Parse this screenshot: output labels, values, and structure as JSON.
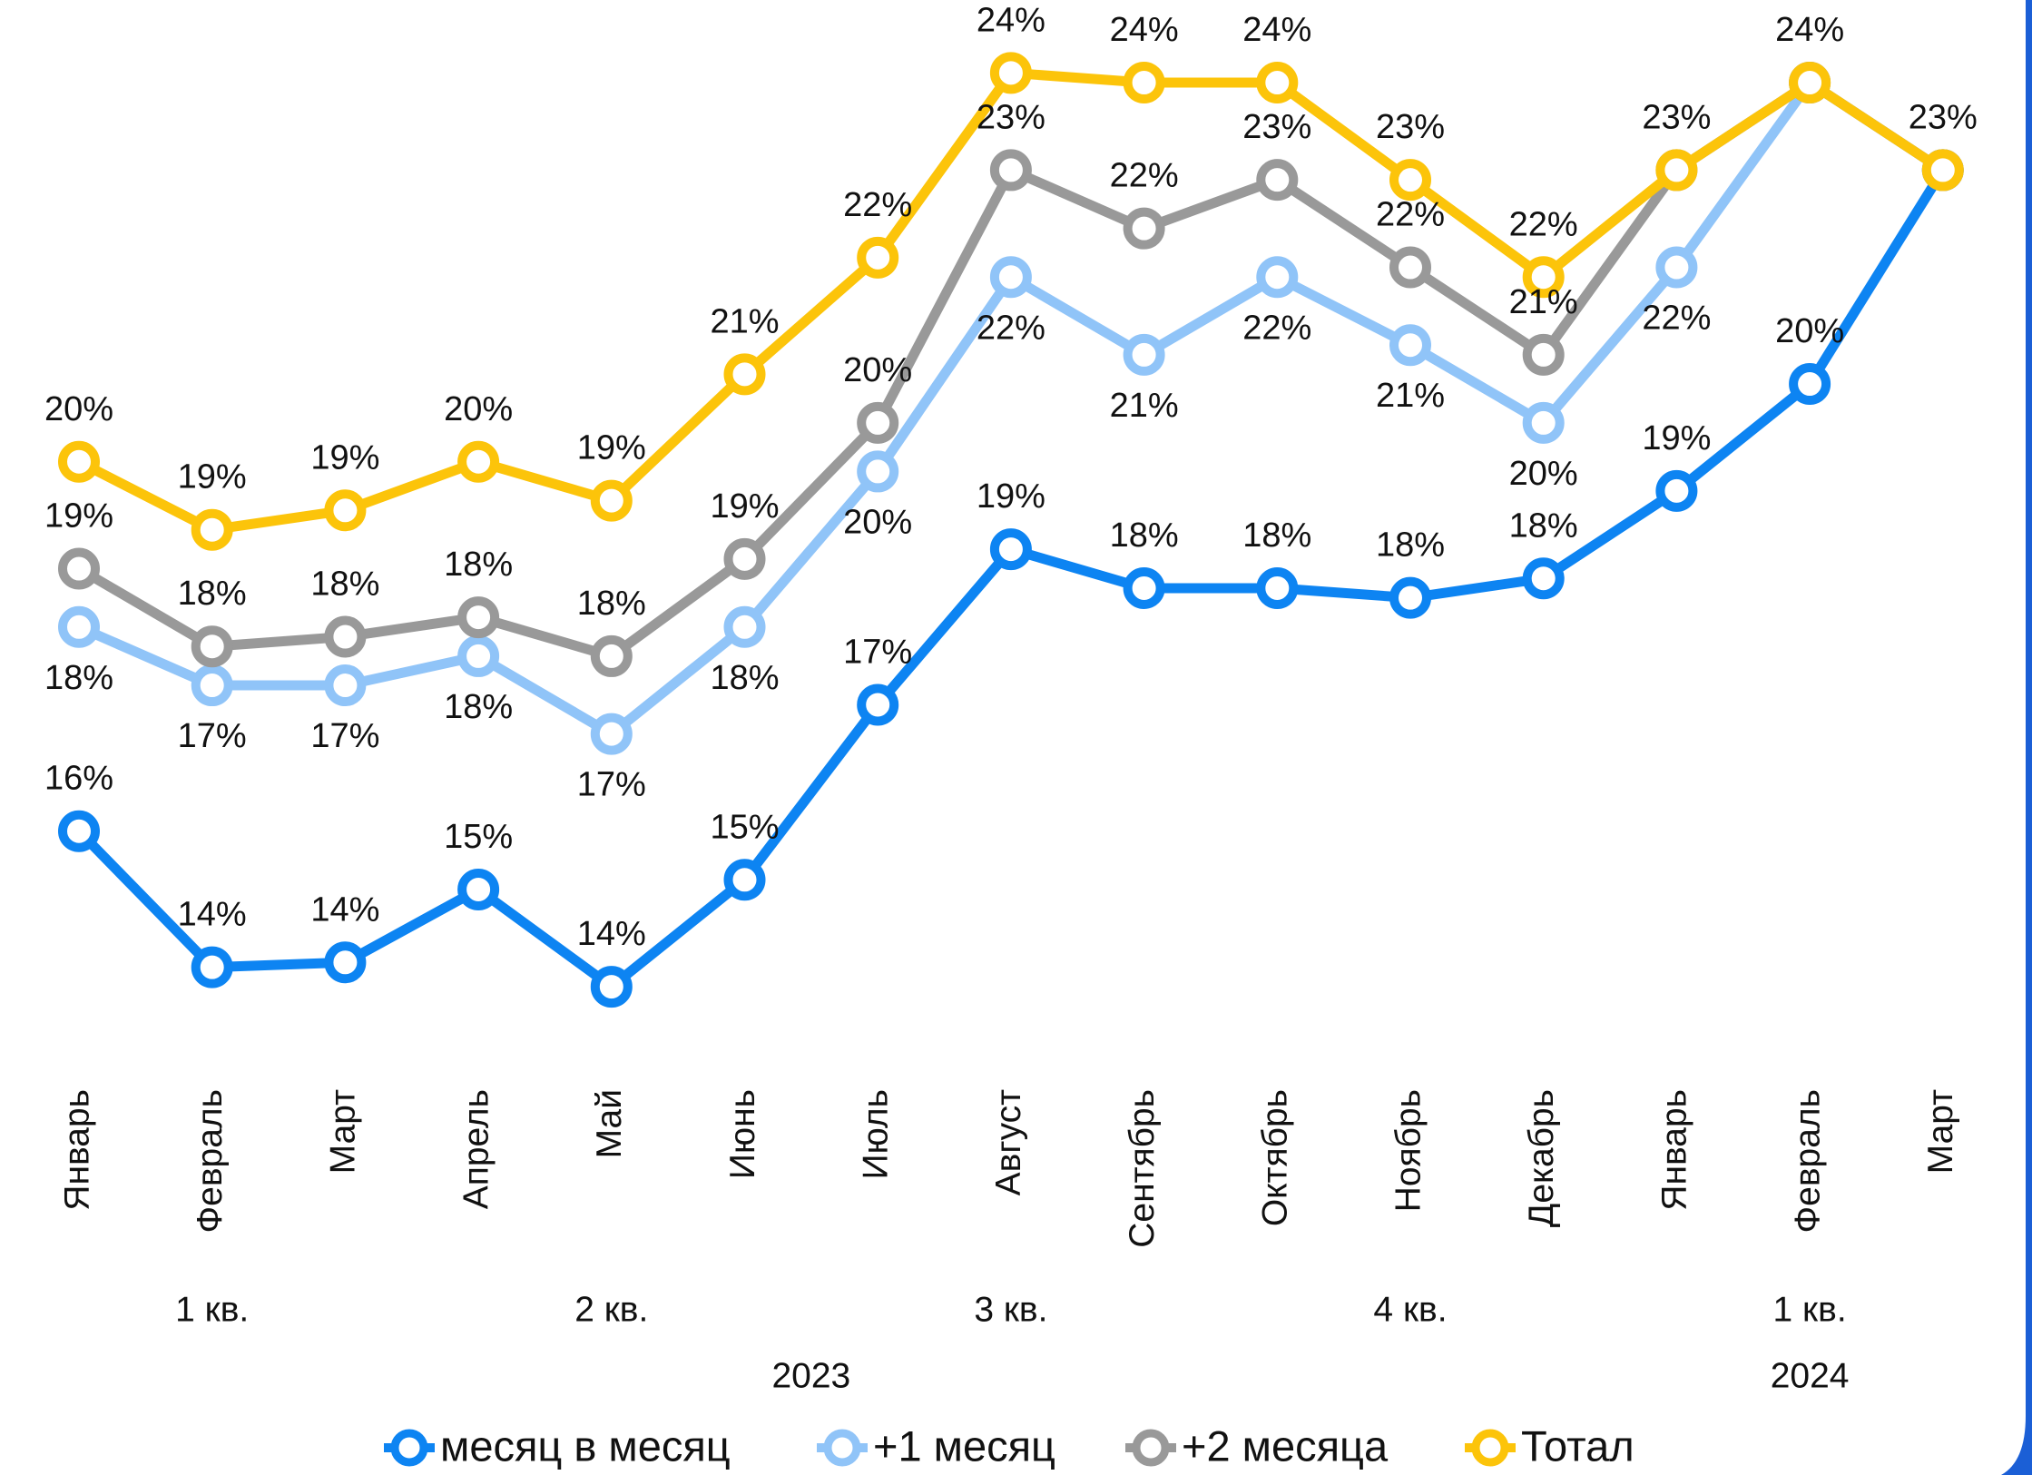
{
  "chart_data": {
    "type": "line",
    "categories": [
      "Январь",
      "Февраль",
      "Март",
      "Апрель",
      "Май",
      "Июнь",
      "Июль",
      "Август",
      "Сентябрь",
      "Октябрь",
      "Ноябрь",
      "Декабрь",
      "Январь",
      "Февраль",
      "Март"
    ],
    "quarters": [
      "1 кв.",
      "2 кв.",
      "3 кв.",
      "4 кв.",
      "1 кв."
    ],
    "years": [
      "2023",
      "2024"
    ],
    "series": [
      {
        "name": "месяц в месяц",
        "color": "#0d84f2",
        "values": [
          15.8,
          14.4,
          14.45,
          15.2,
          14.2,
          15.3,
          17.1,
          18.7,
          18.3,
          18.3,
          18.2,
          18.4,
          19.3,
          20.4,
          22.6
        ],
        "value_labels": [
          "16%",
          "14%",
          "14%",
          "15%",
          "14%",
          "15%",
          "17%",
          "19%",
          "18%",
          "18%",
          "18%",
          "18%",
          "19%",
          "20%",
          null
        ]
      },
      {
        "name": "+1 месяц",
        "color": "#90c4f8",
        "values": [
          17.9,
          17.3,
          17.3,
          17.6,
          16.8,
          17.9,
          19.5,
          21.5,
          20.7,
          21.5,
          20.8,
          20.0,
          21.6,
          23.5,
          22.6
        ],
        "value_labels": [
          "18%",
          "17%",
          "17%",
          "18%",
          "17%",
          "18%",
          "20%",
          "22%",
          "21%",
          "22%",
          "21%",
          "20%",
          "22%",
          null,
          null
        ]
      },
      {
        "name": "+2 месяца",
        "color": "#999999",
        "values": [
          18.5,
          17.7,
          17.8,
          18.0,
          17.6,
          18.6,
          20.0,
          22.6,
          22.0,
          22.5,
          21.6,
          20.7,
          22.6,
          23.5,
          22.6
        ],
        "value_labels": [
          "19%",
          "18%",
          "18%",
          "18%",
          "18%",
          "19%",
          "20%",
          "23%",
          "22%",
          "23%",
          "22%",
          "21%",
          null,
          null,
          null
        ]
      },
      {
        "name": "Тотал",
        "color": "#fcc40a",
        "values": [
          19.6,
          18.9,
          19.1,
          19.6,
          19.2,
          20.5,
          21.7,
          23.6,
          23.5,
          23.5,
          22.5,
          21.5,
          22.6,
          23.5,
          22.6
        ],
        "value_labels": [
          "20%",
          "19%",
          "19%",
          "20%",
          "19%",
          "21%",
          "22%",
          "24%",
          "24%",
          "24%",
          "23%",
          "22%",
          "23%",
          "24%",
          "23%"
        ]
      }
    ],
    "legend": "bottom"
  }
}
